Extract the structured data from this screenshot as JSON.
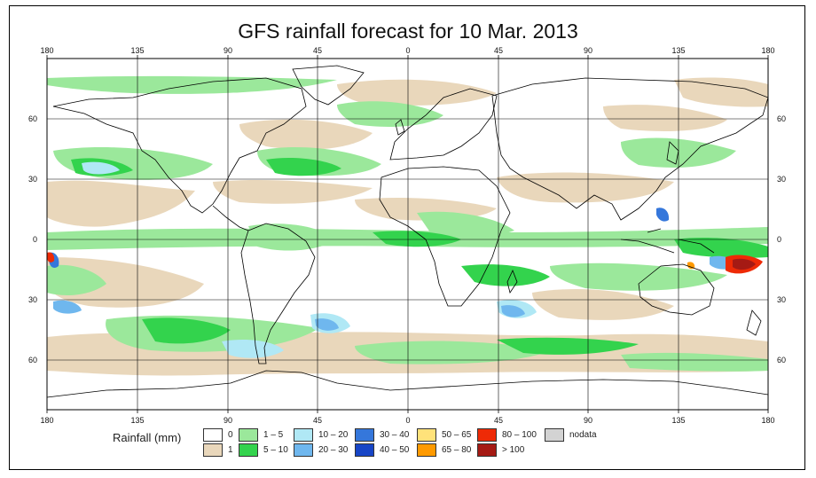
{
  "title": "GFS rainfall forecast for 10 Mar. 2013",
  "map": {
    "projection": "equirectangular",
    "lon_range": [
      -180,
      180
    ],
    "lat_range": [
      -90,
      90
    ],
    "top_labels": [
      "180",
      "135",
      "90",
      "45",
      "0",
      "45",
      "90",
      "135",
      "180"
    ],
    "bottom_labels": [
      "180",
      "135",
      "90",
      "45",
      "0",
      "45",
      "90",
      "135",
      "180"
    ],
    "left_labels": [
      "60",
      "30",
      "0",
      "30",
      "60"
    ],
    "right_labels": [
      "60",
      "30",
      "0",
      "30",
      "60"
    ],
    "ocean_color": "#ffffff",
    "land_border_color": "#000000",
    "grid_color": "#000000"
  },
  "legend": {
    "title": "Rainfall (mm)",
    "items": [
      {
        "label": "0",
        "color": "#ffffff"
      },
      {
        "label": "1",
        "color": "#e9d7bb"
      },
      {
        "label": "1 – 5",
        "color": "#9be89b"
      },
      {
        "label": "5 – 10",
        "color": "#33d34d"
      },
      {
        "label": "10 – 20",
        "color": "#b0e8f5"
      },
      {
        "label": "20 – 30",
        "color": "#6fb7ee"
      },
      {
        "label": "30 – 40",
        "color": "#3577db"
      },
      {
        "label": "40 – 50",
        "color": "#1745c6"
      },
      {
        "label": "50 – 65",
        "color": "#ffe27a"
      },
      {
        "label": "65 – 80",
        "color": "#ff9a00"
      },
      {
        "label": "80 – 100",
        "color": "#ee2a06"
      },
      {
        "label": "> 100",
        "color": "#a51a14"
      },
      {
        "label": "nodata",
        "color": "#d3d3d3"
      }
    ]
  }
}
